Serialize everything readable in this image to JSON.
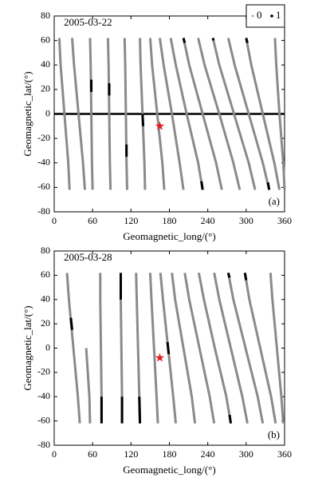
{
  "chart_data": [
    {
      "type": "line",
      "annotation": "2005-03-22",
      "panel_label": "(a)",
      "x_label": "Geomagnetic_long/(°)",
      "y_label": "Geomagnetic_lat/(°)",
      "xlim": [
        0,
        360
      ],
      "ylim": [
        -80,
        80
      ],
      "xticks": [
        0,
        60,
        120,
        180,
        240,
        300,
        360
      ],
      "yticks": [
        -80,
        -60,
        -40,
        -20,
        0,
        20,
        40,
        60,
        80
      ],
      "reference_line": 0,
      "marker": {
        "x": 165,
        "y": -10,
        "color": "#e02020"
      },
      "series": [
        {
          "name": "0",
          "color": "#8a8a8a",
          "x": [
            8,
            10,
            16,
            22,
            24,
            null,
            28,
            31,
            38,
            45,
            48,
            null,
            56,
            57,
            58,
            59,
            60,
            null,
            84,
            85,
            86,
            87,
            88,
            null,
            110,
            111,
            112,
            113,
            114,
            null,
            134,
            135,
            138,
            141,
            142,
            null,
            150,
            153,
            161,
            169,
            172,
            null,
            165,
            171,
            184,
            196,
            202,
            null,
            182,
            190,
            207,
            225,
            232,
            null,
            202,
            211,
            232,
            253,
            262,
            null,
            225,
            235,
            258,
            280,
            290,
            null,
            248,
            258,
            281,
            304,
            314,
            null,
            272,
            282,
            304,
            326,
            336,
            null,
            300,
            308,
            326,
            344,
            352,
            null,
            345,
            347,
            352,
            358,
            360
          ],
          "values": [
            62,
            40,
            0,
            -40,
            -62,
            null,
            62,
            40,
            0,
            -40,
            -62,
            null,
            62,
            40,
            0,
            -40,
            -62,
            null,
            62,
            40,
            0,
            -40,
            -62,
            null,
            62,
            40,
            0,
            -40,
            -62,
            null,
            62,
            40,
            0,
            -40,
            -62,
            null,
            62,
            40,
            0,
            -40,
            -62,
            null,
            62,
            40,
            0,
            -40,
            -62,
            null,
            62,
            40,
            0,
            -40,
            -62,
            null,
            62,
            40,
            0,
            -40,
            -62,
            null,
            62,
            40,
            0,
            -40,
            -62,
            null,
            62,
            40,
            0,
            -40,
            -62,
            null,
            62,
            40,
            0,
            -40,
            -62,
            null,
            62,
            40,
            0,
            -40,
            -62,
            null,
            62,
            40,
            0,
            -40,
            -62
          ]
        },
        {
          "name": "1",
          "color": "#000000",
          "x": [
            86,
            86,
            null,
            58,
            58,
            null,
            113,
            113,
            null,
            202,
            204,
            null,
            300,
            302,
            null,
            334,
            336,
            null,
            248,
            249,
            null,
            230,
            232,
            null,
            138,
            139
          ],
          "values": [
            25,
            15,
            null,
            28,
            18,
            null,
            -25,
            -35,
            null,
            62,
            58,
            null,
            62,
            58,
            null,
            -56,
            -62,
            null,
            62,
            60,
            null,
            -55,
            -62,
            null,
            0,
            -10
          ]
        }
      ]
    },
    {
      "type": "line",
      "annotation": "2005-03-28",
      "panel_label": "(b)",
      "x_label": "Geomagnetic_long/(°)",
      "y_label": "Geomagnetic_lat/(°)",
      "xlim": [
        0,
        360
      ],
      "ylim": [
        -80,
        80
      ],
      "xticks": [
        0,
        60,
        120,
        180,
        240,
        300,
        360
      ],
      "yticks": [
        -80,
        -60,
        -40,
        -20,
        0,
        20,
        40,
        60,
        80
      ],
      "marker": {
        "x": 165,
        "y": -8,
        "color": "#e02020"
      },
      "series": [
        {
          "name": "0",
          "color": "#8a8a8a",
          "x": [
            20,
            23,
            30,
            37,
            40,
            null,
            50,
            55,
            56,
            null,
            72,
            72,
            73,
            74,
            74,
            null,
            104,
            104,
            105,
            106,
            106,
            null,
            128,
            129,
            131,
            133,
            134,
            null,
            150,
            152,
            156,
            160,
            162,
            null,
            166,
            170,
            178,
            186,
            190,
            null,
            184,
            189,
            202,
            215,
            220,
            null,
            204,
            211,
            227,
            243,
            250,
            null,
            226,
            234,
            251,
            269,
            276,
            null,
            250,
            258,
            276,
            294,
            302,
            null,
            272,
            280,
            299,
            318,
            326,
            null,
            298,
            305,
            322,
            339,
            346,
            null,
            338,
            341,
            348,
            355,
            358
          ],
          "values": [
            62,
            40,
            0,
            -40,
            -62,
            null,
            0,
            -40,
            -62,
            null,
            62,
            40,
            0,
            -40,
            -62,
            null,
            62,
            40,
            0,
            -40,
            -62,
            null,
            62,
            40,
            0,
            -40,
            -62,
            null,
            62,
            40,
            0,
            -40,
            -62,
            null,
            62,
            40,
            0,
            -40,
            -62,
            null,
            62,
            40,
            0,
            -40,
            -62,
            null,
            62,
            40,
            0,
            -40,
            -62,
            null,
            62,
            40,
            0,
            -40,
            -62,
            null,
            62,
            40,
            0,
            -40,
            -62,
            null,
            62,
            40,
            0,
            -40,
            -62,
            null,
            62,
            40,
            0,
            -40,
            -62,
            null,
            62,
            40,
            0,
            -40,
            -62
          ]
        },
        {
          "name": "1",
          "color": "#000000",
          "x": [
            104,
            104,
            null,
            106,
            106,
            null,
            74,
            74,
            null,
            133,
            134,
            null,
            298,
            300,
            null,
            274,
            276,
            null,
            177,
            179,
            null,
            272,
            274,
            null,
            26,
            28
          ],
          "values": [
            62,
            40,
            null,
            -40,
            -62,
            null,
            -40,
            -62,
            null,
            -40,
            -62,
            null,
            62,
            56,
            null,
            -55,
            -62,
            null,
            5,
            -5,
            null,
            62,
            58,
            null,
            25,
            15
          ]
        }
      ]
    }
  ]
}
